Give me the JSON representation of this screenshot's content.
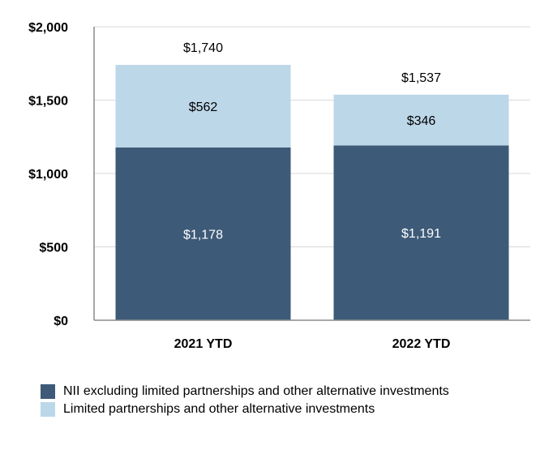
{
  "chart_data": {
    "type": "bar",
    "stacked": true,
    "title": "",
    "xlabel": "",
    "ylabel": "",
    "ylim": [
      0,
      2000
    ],
    "yticks": [
      0,
      500,
      1000,
      1500,
      2000
    ],
    "ytick_labels": [
      "$0",
      "$500",
      "$1,000",
      "$1,500",
      "$2,000"
    ],
    "categories": [
      "2021 YTD",
      "2022 YTD"
    ],
    "series": [
      {
        "name": "NII excluding limited partnerships and other alternative investments",
        "color": "#3d5a78",
        "values": [
          1178,
          1191
        ],
        "value_labels": [
          "$1,178",
          "$1,191"
        ],
        "label_color": "#ffffff"
      },
      {
        "name": "Limited partnerships and other alternative investments",
        "color": "#bcd7e8",
        "values": [
          562,
          346
        ],
        "value_labels": [
          "$562",
          "$346"
        ],
        "label_color": "#000000"
      }
    ],
    "totals": [
      1740,
      1537
    ],
    "total_labels": [
      "$1,740",
      "$1,537"
    ],
    "grid": true,
    "legend_position": "bottom-left"
  }
}
